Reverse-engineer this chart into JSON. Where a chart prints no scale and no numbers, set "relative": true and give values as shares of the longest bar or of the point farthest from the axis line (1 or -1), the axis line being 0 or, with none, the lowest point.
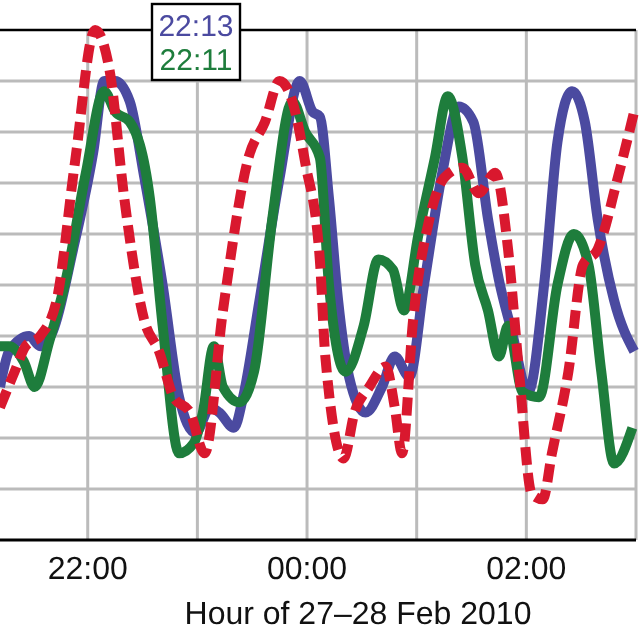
{
  "chart_data": {
    "type": "line",
    "relative": true,
    "xlabel": "Hour of 27–28 Feb 2010",
    "xlim": [
      "2010-02-27T21:12",
      "2010-02-28T03:00"
    ],
    "xticks": [
      {
        "value": "2010-02-27T22:00",
        "label": "22:00"
      },
      {
        "value": "2010-02-27T23:00",
        "label": null
      },
      {
        "value": "2010-02-28T00:00",
        "label": "00:00"
      },
      {
        "value": "2010-02-28T01:00",
        "label": null
      },
      {
        "value": "2010-02-28T02:00",
        "label": "02:00"
      },
      {
        "value": "2010-02-28T03:00",
        "label": null
      }
    ],
    "grid": true,
    "legend": "top",
    "line_style": "solid",
    "marker": "none",
    "series": [
      {
        "name": "22:13",
        "color": "#4b4aa0",
        "x": [
          "2010-02-27T21:12",
          "2010-02-27T21:17",
          "2010-02-27T21:28",
          "2010-02-27T21:34",
          "2010-02-27T21:41",
          "2010-02-27T21:52",
          "2010-02-27T22:03",
          "2010-02-27T22:09",
          "2010-02-27T22:15",
          "2010-02-27T22:23",
          "2010-02-27T22:31",
          "2010-02-27T22:41",
          "2010-02-27T22:50",
          "2010-02-27T22:59",
          "2010-02-27T23:07",
          "2010-02-27T23:12",
          "2010-02-27T23:20",
          "2010-02-27T23:25",
          "2010-02-27T23:34",
          "2010-02-27T23:45",
          "2010-02-27T23:56",
          "2010-02-28T00:03",
          "2010-02-28T00:07",
          "2010-02-28T00:12",
          "2010-02-28T00:17",
          "2010-02-28T00:23",
          "2010-02-28T00:32",
          "2010-02-28T00:41",
          "2010-02-28T00:48",
          "2010-02-28T00:56",
          "2010-02-28T01:04",
          "2010-02-28T01:14",
          "2010-02-28T01:23",
          "2010-02-28T01:31",
          "2010-02-28T01:39",
          "2010-02-28T01:45",
          "2010-02-28T01:52",
          "2010-02-28T02:01",
          "2010-02-28T02:10",
          "2010-02-28T02:17",
          "2010-02-28T02:25",
          "2010-02-28T02:32",
          "2010-02-28T02:39",
          "2010-02-28T02:48",
          "2010-02-28T02:59"
        ],
        "values": [
          0.3,
          0.37,
          0.4,
          0.38,
          0.41,
          0.57,
          0.76,
          0.9,
          0.9,
          0.86,
          0.71,
          0.5,
          0.28,
          0.21,
          0.26,
          0.25,
          0.22,
          0.28,
          0.47,
          0.71,
          0.9,
          0.84,
          0.83,
          0.67,
          0.47,
          0.32,
          0.25,
          0.3,
          0.36,
          0.32,
          0.5,
          0.72,
          0.85,
          0.82,
          0.63,
          0.51,
          0.41,
          0.29,
          0.51,
          0.78,
          0.88,
          0.82,
          0.63,
          0.47,
          0.37
        ]
      },
      {
        "name": "22:11",
        "color": "#1e7d3c",
        "x": [
          "2010-02-27T21:12",
          "2010-02-27T21:17",
          "2010-02-27T21:25",
          "2010-02-27T21:31",
          "2010-02-27T21:39",
          "2010-02-27T21:48",
          "2010-02-27T21:59",
          "2010-02-27T22:09",
          "2010-02-27T22:15",
          "2010-02-27T22:23",
          "2010-02-27T22:34",
          "2010-02-27T22:41",
          "2010-02-27T22:50",
          "2010-02-27T22:58",
          "2010-02-27T23:03",
          "2010-02-27T23:09",
          "2010-02-27T23:14",
          "2010-02-27T23:23",
          "2010-02-27T23:31",
          "2010-02-27T23:41",
          "2010-02-27T23:52",
          "2010-02-27T23:59",
          "2010-02-28T00:07",
          "2010-02-28T00:12",
          "2010-02-28T00:21",
          "2010-02-28T00:31",
          "2010-02-28T00:39",
          "2010-02-28T00:47",
          "2010-02-28T00:53",
          "2010-02-28T01:01",
          "2010-02-28T01:10",
          "2010-02-28T01:17",
          "2010-02-28T01:25",
          "2010-02-28T01:32",
          "2010-02-28T01:39",
          "2010-02-28T01:45",
          "2010-02-28T01:50",
          "2010-02-28T01:58",
          "2010-02-28T02:07",
          "2010-02-28T02:17",
          "2010-02-28T02:26",
          "2010-02-28T02:34",
          "2010-02-28T02:41",
          "2010-02-28T02:48",
          "2010-02-28T02:58"
        ],
        "values": [
          0.38,
          0.38,
          0.35,
          0.3,
          0.39,
          0.51,
          0.72,
          0.88,
          0.84,
          0.82,
          0.67,
          0.42,
          0.17,
          0.19,
          0.25,
          0.38,
          0.3,
          0.27,
          0.33,
          0.63,
          0.86,
          0.8,
          0.75,
          0.5,
          0.33,
          0.42,
          0.55,
          0.53,
          0.45,
          0.6,
          0.75,
          0.87,
          0.75,
          0.54,
          0.45,
          0.36,
          0.42,
          0.29,
          0.28,
          0.5,
          0.6,
          0.54,
          0.33,
          0.15,
          0.22
        ]
      },
      {
        "color": "#d9182e",
        "line_style": "dashed",
        "x": [
          "2010-02-27T21:12",
          "2010-02-27T21:20",
          "2010-02-27T21:26",
          "2010-02-27T21:34",
          "2010-02-27T21:43",
          "2010-02-27T21:53",
          "2010-02-27T22:04",
          "2010-02-27T22:12",
          "2010-02-27T22:20",
          "2010-02-27T22:31",
          "2010-02-27T22:39",
          "2010-02-27T22:47",
          "2010-02-27T22:56",
          "2010-02-27T23:04",
          "2010-02-27T23:14",
          "2010-02-27T23:28",
          "2010-02-27T23:37",
          "2010-02-27T23:45",
          "2010-02-27T23:52",
          "2010-02-27T23:59",
          "2010-02-28T00:07",
          "2010-02-28T00:10",
          "2010-02-28T00:20",
          "2010-02-28T00:26",
          "2010-02-28T00:34",
          "2010-02-28T00:43",
          "2010-02-28T00:48",
          "2010-02-28T00:52",
          "2010-02-28T00:58",
          "2010-02-28T01:07",
          "2010-02-28T01:15",
          "2010-02-28T01:25",
          "2010-02-28T01:34",
          "2010-02-28T01:43",
          "2010-02-28T01:50",
          "2010-02-28T01:56",
          "2010-02-28T02:03",
          "2010-02-28T02:09",
          "2010-02-28T02:14",
          "2010-02-28T02:23",
          "2010-02-28T02:31",
          "2010-02-28T02:39",
          "2010-02-28T02:50",
          "2010-02-28T02:59"
        ],
        "values": [
          0.26,
          0.33,
          0.38,
          0.4,
          0.47,
          0.74,
          1.0,
          0.92,
          0.67,
          0.43,
          0.37,
          0.28,
          0.25,
          0.17,
          0.45,
          0.75,
          0.82,
          0.9,
          0.86,
          0.74,
          0.55,
          0.36,
          0.16,
          0.25,
          0.3,
          0.34,
          0.26,
          0.17,
          0.43,
          0.63,
          0.71,
          0.73,
          0.68,
          0.72,
          0.57,
          0.33,
          0.09,
          0.08,
          0.17,
          0.33,
          0.54,
          0.57,
          0.71,
          0.84
        ]
      }
    ]
  }
}
